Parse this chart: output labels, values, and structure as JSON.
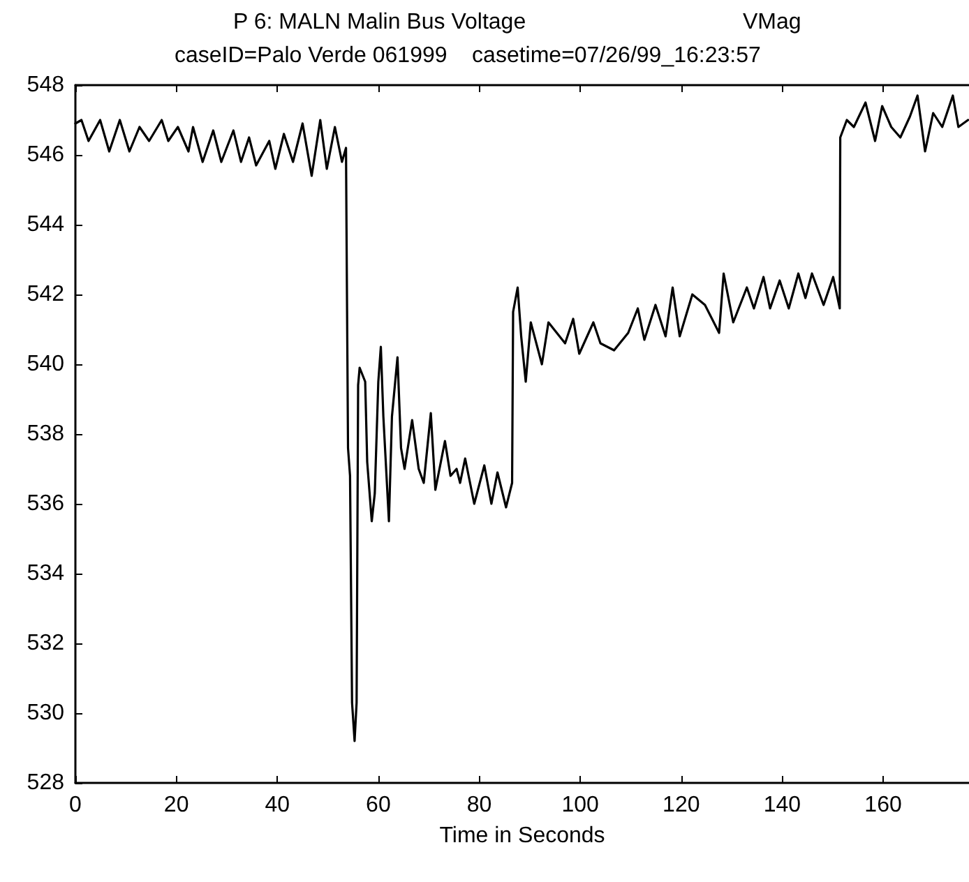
{
  "chart_data": {
    "type": "line",
    "title": "P 6: MALN Malin Bus Voltage",
    "ylabel": "VMag",
    "subtitle": "caseID=Palo Verde 061999    casetime=07/26/99_16:23:57",
    "xlabel": "Time in Seconds",
    "xlim": [
      0,
      177
    ],
    "xticks": [
      0,
      20,
      40,
      60,
      80,
      100,
      120,
      140,
      160
    ],
    "ylim": [
      528,
      548
    ],
    "yticks": [
      528,
      530,
      532,
      534,
      536,
      538,
      540,
      542,
      544,
      546,
      548
    ],
    "marker": "none",
    "line_style": "solid",
    "series": [
      {
        "color": "#000000",
        "x": [
          0,
          1.2,
          2.6,
          4.9,
          6.7,
          8.8,
          10.7,
          12.7,
          14.6,
          17.1,
          18.4,
          20.3,
          22.4,
          23.3,
          25.2,
          27.3,
          28.9,
          31.3,
          32.8,
          34.4,
          35.8,
          38.4,
          39.6,
          41.3,
          43.1,
          45,
          46.8,
          48.5,
          49.8,
          51.4,
          52.8,
          53.6,
          53.7,
          54.0,
          54.4,
          54.8,
          55.3,
          55.7,
          56.0,
          56.3,
          57.4,
          57.8,
          58.7,
          59.3,
          60.0,
          60.5,
          61.0,
          62.1,
          62.7,
          63.8,
          64.5,
          65.2,
          66.7,
          68.0,
          69.0,
          70.4,
          71.3,
          73.2,
          74.3,
          75.5,
          76.2,
          77.2,
          79.0,
          81.0,
          82.4,
          83.6,
          85.3,
          86.5,
          86.7,
          87.6,
          88.3,
          89.2,
          90.2,
          92.4,
          93.7,
          97,
          98.6,
          99.8,
          102.6,
          104,
          106.7,
          109.5,
          111.4,
          112.7,
          114.9,
          116.9,
          118.3,
          119.7,
          122.2,
          124.7,
          127.5,
          128.4,
          130.3,
          133,
          134.4,
          136.3,
          137.6,
          139.5,
          141.3,
          143.2,
          144.6,
          145.9,
          148.2,
          150.1,
          151.4,
          151.5,
          152.8,
          154.2,
          156.5,
          158.4,
          159.8,
          161.6,
          163.4,
          165.3,
          166.8,
          168.3,
          169.9,
          171.7,
          173.8,
          174.9,
          176.8
        ],
        "values": [
          546.9,
          547.0,
          546.4,
          547.0,
          546.1,
          547.0,
          546.1,
          546.8,
          546.4,
          547.0,
          546.4,
          546.8,
          546.1,
          546.8,
          545.8,
          546.7,
          545.8,
          546.7,
          545.8,
          546.5,
          545.7,
          546.4,
          545.6,
          546.6,
          545.8,
          546.9,
          545.4,
          547.0,
          545.6,
          546.8,
          545.8,
          546.2,
          543.9,
          537.6,
          536.8,
          530.3,
          529.2,
          530.3,
          539.4,
          539.9,
          539.5,
          537.2,
          535.5,
          536.3,
          539.5,
          540.5,
          538.5,
          535.5,
          538.5,
          540.2,
          537.6,
          537.0,
          538.4,
          537.0,
          536.6,
          538.6,
          536.4,
          537.8,
          536.8,
          537.0,
          536.6,
          537.3,
          536.0,
          537.1,
          536.0,
          536.9,
          535.9,
          536.6,
          541.5,
          542.2,
          540.8,
          539.5,
          541.2,
          540.0,
          541.2,
          540.6,
          541.3,
          540.3,
          541.2,
          540.6,
          540.4,
          540.9,
          541.6,
          540.7,
          541.7,
          540.8,
          542.2,
          540.8,
          542.0,
          541.7,
          540.9,
          542.6,
          541.2,
          542.2,
          541.6,
          542.5,
          541.6,
          542.4,
          541.6,
          542.6,
          541.9,
          542.6,
          541.7,
          542.5,
          541.6,
          546.5,
          547.0,
          546.8,
          547.5,
          546.4,
          547.4,
          546.8,
          546.5,
          547.1,
          547.7,
          546.1,
          547.2,
          546.8,
          547.7,
          546.8,
          547.0
        ]
      }
    ]
  }
}
